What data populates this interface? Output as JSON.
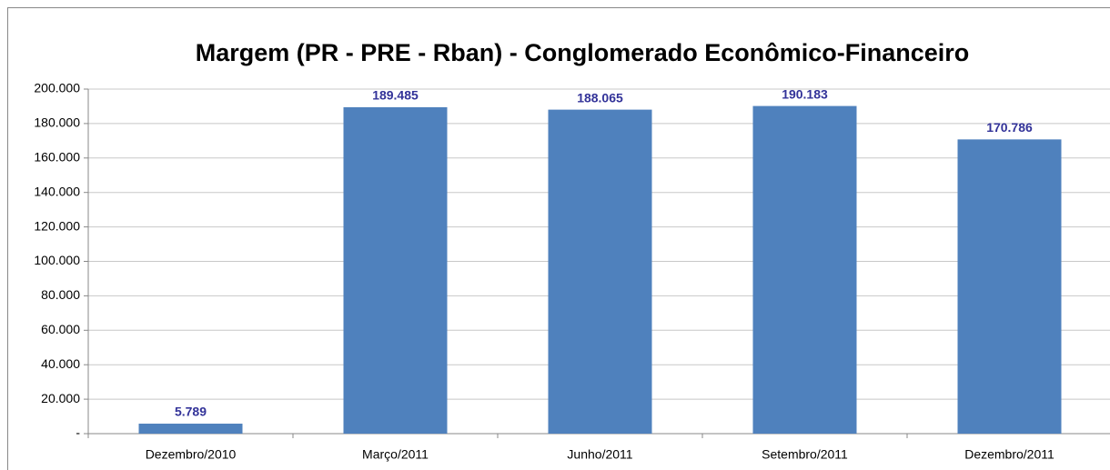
{
  "chart_data": {
    "type": "bar",
    "title": "Margem (PR - PRE - Rban) - Conglomerado Econômico-Financeiro",
    "categories": [
      "Dezembro/2010",
      "Março/2011",
      "Junho/2011",
      "Setembro/2011",
      "Dezembro/2011"
    ],
    "values": [
      5789,
      189485,
      188065,
      190183,
      170786
    ],
    "value_labels": [
      "5.789",
      "189.485",
      "188.065",
      "190.183",
      "170.786"
    ],
    "color": "#4f81bd",
    "ylim": [
      0,
      200000
    ],
    "yticks": [
      {
        "value": 0,
        "label": "-"
      },
      {
        "value": 20000,
        "label": "20.000"
      },
      {
        "value": 40000,
        "label": "40.000"
      },
      {
        "value": 60000,
        "label": "60.000"
      },
      {
        "value": 80000,
        "label": "80.000"
      },
      {
        "value": 100000,
        "label": "100.000"
      },
      {
        "value": 120000,
        "label": "120.000"
      },
      {
        "value": 140000,
        "label": "140.000"
      },
      {
        "value": 160000,
        "label": "160.000"
      },
      {
        "value": 180000,
        "label": "180.000"
      },
      {
        "value": 200000,
        "label": "200.000"
      }
    ],
    "grid": true
  }
}
